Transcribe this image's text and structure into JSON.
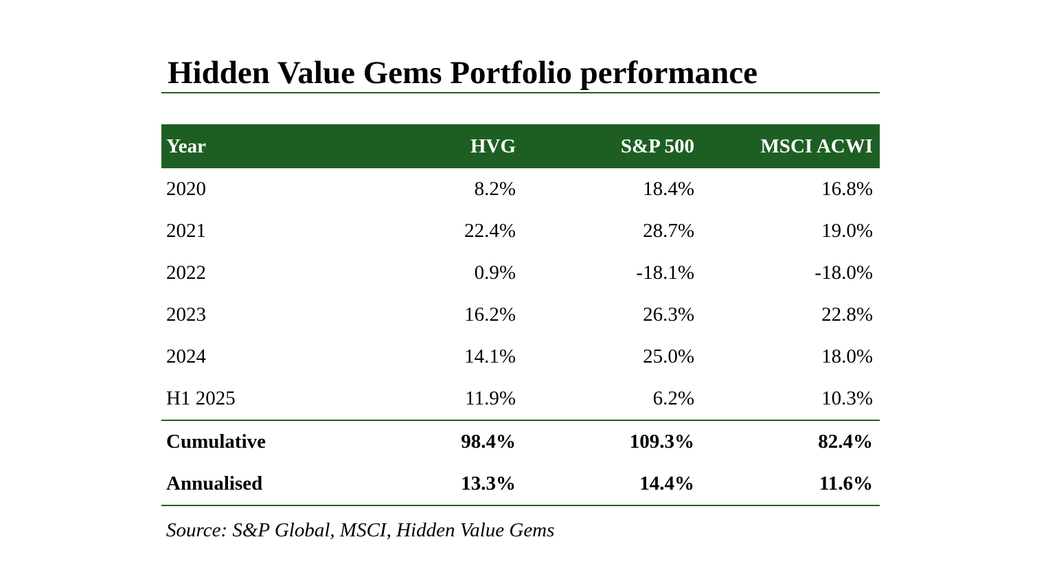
{
  "title": "Hidden Value Gems Portfolio performance",
  "colors": {
    "accent": "#1d5f22",
    "header_text": "#ffffff"
  },
  "table": {
    "headers": [
      "Year",
      "HVG",
      "S&P 500",
      "MSCI ACWI"
    ],
    "rows": [
      [
        "2020",
        "8.2%",
        "18.4%",
        "16.8%"
      ],
      [
        "2021",
        "22.4%",
        "28.7%",
        "19.0%"
      ],
      [
        "2022",
        "0.9%",
        "-18.1%",
        "-18.0%"
      ],
      [
        "2023",
        "16.2%",
        "26.3%",
        "22.8%"
      ],
      [
        "2024",
        "14.1%",
        "25.0%",
        "18.0%"
      ],
      [
        "H1 2025",
        "11.9%",
        "6.2%",
        "10.3%"
      ]
    ],
    "summary_rows": [
      [
        "Cumulative",
        "98.4%",
        "109.3%",
        "82.4%"
      ],
      [
        "Annualised",
        "13.3%",
        "14.4%",
        "11.6%"
      ]
    ]
  },
  "chart_data": {
    "type": "table",
    "title": "Hidden Value Gems Portfolio performance",
    "columns": [
      "Year",
      "HVG",
      "S&P 500",
      "MSCI ACWI"
    ],
    "rows": [
      {
        "Year": "2020",
        "HVG": 8.2,
        "S&P 500": 18.4,
        "MSCI ACWI": 16.8
      },
      {
        "Year": "2021",
        "HVG": 22.4,
        "S&P 500": 28.7,
        "MSCI ACWI": 19.0
      },
      {
        "Year": "2022",
        "HVG": 0.9,
        "S&P 500": -18.1,
        "MSCI ACWI": -18.0
      },
      {
        "Year": "2023",
        "HVG": 16.2,
        "S&P 500": 26.3,
        "MSCI ACWI": 22.8
      },
      {
        "Year": "2024",
        "HVG": 14.1,
        "S&P 500": 25.0,
        "MSCI ACWI": 18.0
      },
      {
        "Year": "H1 2025",
        "HVG": 11.9,
        "S&P 500": 6.2,
        "MSCI ACWI": 10.3
      }
    ],
    "summary": [
      {
        "Year": "Cumulative",
        "HVG": 98.4,
        "S&P 500": 109.3,
        "MSCI ACWI": 82.4
      },
      {
        "Year": "Annualised",
        "HVG": 13.3,
        "S&P 500": 14.4,
        "MSCI ACWI": 11.6
      }
    ],
    "unit": "%"
  },
  "source": "Source: S&P Global, MSCI, Hidden Value Gems"
}
